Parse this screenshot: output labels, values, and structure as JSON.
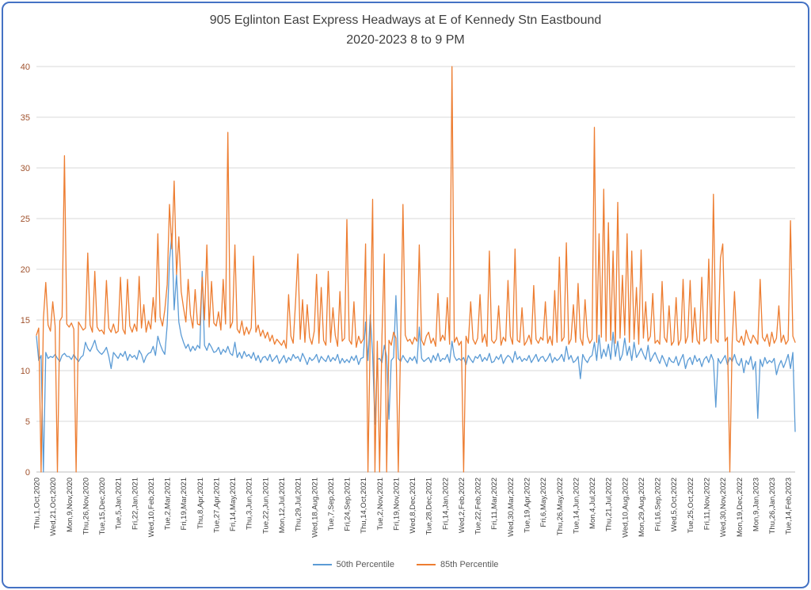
{
  "title": {
    "line1": "905 Eglinton East Express Headways at E of Kennedy Stn Eastbound",
    "line2": "2020-2023 8 to 9 PM"
  },
  "colors": {
    "series_50th": "#5B9BD5",
    "series_85th": "#ED7D31",
    "gridline": "#D9D9D9",
    "axis_line": "#BFBFBF",
    "y_tick_label": "#A0522D",
    "x_tick_label": "#404040",
    "title_text": "#3F3F3F",
    "legend_text": "#595959",
    "frame_border": "#4472C4"
  },
  "chart_data": {
    "type": "line",
    "title": "905 Eglinton East Express Headways at E of Kennedy Stn Eastbound",
    "subtitle": "2020-2023 8 to 9 PM",
    "xlabel": "",
    "ylabel": "",
    "ylim": [
      0,
      40
    ],
    "y_ticks": [
      0,
      5,
      10,
      15,
      20,
      25,
      30,
      35,
      40
    ],
    "grid": true,
    "legend_position": "bottom",
    "points_per_tick": 7,
    "x_tick_labels": [
      "Thu,1,Oct,2020",
      "Wed,21,Oct,2020",
      "Mon,9,Nov,2020",
      "Thu,26,Nov,2020",
      "Tue,15,Dec,2020",
      "Tue,5,Jan,2021",
      "Fri,22,Jan,2021",
      "Wed,10,Feb,2021",
      "Tue,2,Mar,2021",
      "Fri,19,Mar,2021",
      "Thu,8,Apr,2021",
      "Tue,27,Apr,2021",
      "Fri,14,May,2021",
      "Thu,3,Jun,2021",
      "Tue,22,Jun,2021",
      "Mon,12,Jul,2021",
      "Thu,29,Jul,2021",
      "Wed,18,Aug,2021",
      "Tue,7,Sep,2021",
      "Fri,24,Sep,2021",
      "Thu,14,Oct,2021",
      "Tue,2,Nov,2021",
      "Fri,19,Nov,2021",
      "Wed,8,Dec,2021",
      "Tue,28,Dec,2021",
      "Fri,14,Jan,2022",
      "Wed,2,Feb,2022",
      "Tue,22,Feb,2022",
      "Fri,11,Mar,2022",
      "Wed,30,Mar,2022",
      "Tue,19,Apr,2022",
      "Fri,6,May,2022",
      "Thu,26,May,2022",
      "Tue,14,Jun,2022",
      "Mon,4,Jul,2022",
      "Thu,21,Jul,2022",
      "Wed,10,Aug,2022",
      "Mon,29,Aug,2022",
      "Fri,16,Sep,2022",
      "Wed,5,Oct,2022",
      "Tue,25,Oct,2022",
      "Fri,11,Nov,2022",
      "Wed,30,Nov,2022",
      "Mon,19,Dec,2022",
      "Mon,9,Jan,2023",
      "Thu,26,Jan,2023",
      "Tue,14,Feb,2023"
    ],
    "series": [
      {
        "name": "50th Percentile",
        "color": "#5B9BD5",
        "values": [
          13.4,
          11.0,
          11.5,
          0,
          11.8,
          11.2,
          11.4,
          11.3,
          11.6,
          11.2,
          10.9,
          11.5,
          11.7,
          11.4,
          11.4,
          11.1,
          11.6,
          11.2,
          10.9,
          11.3,
          11.5,
          12.8,
          12.2,
          11.9,
          12.4,
          13.0,
          12.1,
          11.8,
          11.6,
          11.9,
          12.3,
          11.4,
          10.2,
          11.8,
          11.5,
          11.2,
          11.7,
          11.4,
          11.9,
          11.0,
          11.6,
          11.3,
          11.5,
          11.1,
          12.0,
          11.6,
          10.8,
          11.4,
          11.7,
          11.8,
          12.4,
          11.5,
          13.4,
          12.6,
          12.0,
          11.6,
          14.5,
          20.8,
          23.5,
          16.0,
          19.5,
          14.8,
          13.5,
          12.8,
          12.2,
          12.6,
          11.9,
          12.4,
          12.0,
          12.5,
          12.2,
          19.8,
          12.5,
          12.0,
          12.7,
          12.3,
          11.8,
          11.9,
          12.3,
          11.6,
          12.1,
          11.8,
          12.4,
          11.7,
          11.5,
          12.8,
          11.3,
          11.8,
          11.2,
          11.9,
          11.4,
          11.6,
          11.2,
          11.8,
          11.0,
          11.5,
          10.8,
          11.3,
          11.4,
          11.0,
          11.6,
          10.9,
          11.2,
          11.5,
          10.7,
          11.1,
          11.5,
          10.8,
          11.3,
          11.0,
          11.6,
          11.2,
          11.4,
          10.9,
          11.7,
          11.2,
          10.6,
          11.3,
          11.0,
          11.2,
          11.6,
          10.8,
          11.4,
          11.1,
          10.9,
          11.5,
          10.9,
          11.3,
          11.0,
          11.6,
          10.7,
          11.2,
          10.8,
          11.1,
          10.8,
          11.4,
          11.0,
          11.5,
          10.6,
          11.2,
          11.3,
          14.8,
          11.0,
          15.5,
          11.6,
          4.7,
          11.1,
          11.2,
          10.8,
          12.5,
          11.4,
          5.2,
          11.0,
          11.3,
          17.4,
          11.2,
          10.9,
          11.5,
          11.1,
          10.8,
          11.3,
          11.0,
          11.4,
          10.7,
          14.3,
          11.2,
          10.9,
          11.1,
          11.3,
          10.8,
          11.5,
          11.0,
          11.7,
          10.9,
          11.2,
          11.1,
          11.6,
          10.8,
          12.9,
          11.4,
          11.0,
          11.2,
          11.0,
          11.3,
          10.6,
          11.5,
          11.1,
          10.8,
          11.4,
          11.2,
          11.6,
          10.9,
          11.3,
          11.0,
          11.7,
          10.8,
          10.9,
          11.4,
          11.1,
          11.6,
          10.7,
          11.2,
          11.5,
          11.3,
          10.8,
          11.9,
          11.1,
          11.4,
          10.9,
          11.2,
          11.0,
          11.5,
          10.8,
          11.2,
          11.6,
          10.9,
          11.3,
          11.4,
          10.9,
          11.2,
          11.7,
          10.8,
          11.3,
          11.0,
          11.2,
          11.6,
          10.9,
          12.4,
          11.1,
          11.5,
          10.8,
          11.0,
          11.4,
          9.2,
          11.6,
          11.1,
          10.8,
          11.3,
          11.5,
          12.8,
          11.0,
          13.5,
          11.2,
          12.1,
          11.4,
          12.6,
          11.1,
          13.8,
          11.4,
          12.9,
          11.0,
          11.6,
          13.2,
          11.5,
          12.4,
          11.0,
          12.8,
          11.3,
          11.7,
          12.2,
          11.6,
          11.1,
          12.5,
          10.9,
          11.4,
          11.8,
          11.2,
          10.7,
          11.5,
          11.0,
          10.4,
          11.3,
          10.9,
          10.8,
          11.4,
          10.5,
          11.1,
          11.6,
          10.2,
          11.0,
          11.3,
          10.6,
          11.5,
          10.9,
          11.2,
          10.4,
          11.1,
          11.4,
          10.8,
          11.6,
          11.0,
          6.4,
          11.2,
          10.7,
          11.1,
          11.5,
          10.6,
          11.3,
          10.9,
          11.6,
          10.8,
          10.5,
          11.2,
          9.8,
          11.0,
          10.6,
          11.4,
          10.1,
          10.9,
          5.3,
          11.1,
          10.4,
          11.3,
          10.7,
          11.0,
          10.8,
          11.2,
          9.6,
          10.5,
          11.0,
          10.3,
          10.9,
          11.6,
          10.2,
          11.8,
          4.0
        ]
      },
      {
        "name": "85th Percentile",
        "color": "#ED7D31",
        "values": [
          13.5,
          14.2,
          0,
          15.1,
          18.7,
          14.5,
          13.9,
          16.8,
          14.4,
          0,
          14.9,
          15.3,
          31.2,
          14.6,
          14.3,
          14.7,
          14.1,
          0,
          14.8,
          14.4,
          14.0,
          14.2,
          21.6,
          14.5,
          13.8,
          19.8,
          14.3,
          13.9,
          14.0,
          13.6,
          18.9,
          14.2,
          13.8,
          14.6,
          13.7,
          13.9,
          19.2,
          14.1,
          13.6,
          19.0,
          14.4,
          13.8,
          14.6,
          13.9,
          19.3,
          14.2,
          16.5,
          13.8,
          14.9,
          14.1,
          17.2,
          14.8,
          23.5,
          15.3,
          14.4,
          16.0,
          18.5,
          26.4,
          22.0,
          28.7,
          19.5,
          23.2,
          17.8,
          16.2,
          14.8,
          19.0,
          15.5,
          14.2,
          18.0,
          14.6,
          14.5,
          19.2,
          15.0,
          22.4,
          14.3,
          18.8,
          14.7,
          14.4,
          15.8,
          14.0,
          19.0,
          14.6,
          33.5,
          14.2,
          14.8,
          22.4,
          14.1,
          13.7,
          14.9,
          13.5,
          14.3,
          13.6,
          14.2,
          21.3,
          13.8,
          14.5,
          13.4,
          14.0,
          13.2,
          13.8,
          12.9,
          13.5,
          12.6,
          13.1,
          12.8,
          12.5,
          13.0,
          12.2,
          17.5,
          13.4,
          12.7,
          16.8,
          21.5,
          13.1,
          17.0,
          12.8,
          16.5,
          13.3,
          12.6,
          13.9,
          19.5,
          12.7,
          18.2,
          13.0,
          12.5,
          19.8,
          12.8,
          16.2,
          13.5,
          12.4,
          17.8,
          12.9,
          13.2,
          24.9,
          13.0,
          12.6,
          16.8,
          12.3,
          13.4,
          12.7,
          13.1,
          22.5,
          0,
          13.6,
          26.9,
          0,
          12.9,
          0,
          13.4,
          21.5,
          0,
          13.0,
          12.5,
          13.8,
          13.2,
          0,
          12.8,
          26.4,
          13.5,
          12.9,
          13.1,
          12.6,
          13.3,
          12.9,
          22.4,
          13.0,
          12.5,
          13.4,
          13.8,
          12.7,
          13.2,
          12.4,
          17.6,
          12.9,
          13.5,
          13.0,
          17.2,
          12.6,
          40,
          12.8,
          13.3,
          12.5,
          12.9,
          0,
          13.4,
          12.7,
          16.8,
          13.1,
          12.6,
          13.2,
          17.5,
          12.8,
          13.6,
          12.4,
          21.8,
          13.0,
          12.7,
          13.1,
          16.4,
          12.5,
          13.3,
          12.9,
          18.9,
          13.4,
          12.6,
          22.0,
          13.0,
          12.8,
          16.2,
          12.5,
          12.9,
          13.5,
          12.6,
          18.4,
          13.1,
          12.7,
          13.3,
          13.0,
          16.8,
          12.7,
          13.4,
          12.5,
          17.9,
          12.8,
          21.2,
          12.9,
          13.3,
          22.6,
          12.6,
          13.1,
          16.5,
          12.8,
          18.6,
          13.2,
          12.5,
          17.0,
          13.4,
          12.7,
          13.1,
          34.0,
          12.8,
          23.5,
          13.3,
          27.9,
          12.9,
          24.6,
          13.0,
          21.8,
          12.7,
          26.6,
          13.2,
          19.4,
          13.5,
          23.5,
          12.8,
          21.8,
          13.1,
          18.2,
          12.6,
          21.9,
          13.2,
          16.8,
          12.9,
          13.4,
          17.6,
          12.7,
          13.0,
          12.6,
          18.8,
          13.3,
          12.8,
          16.4,
          12.5,
          12.9,
          17.2,
          12.5,
          13.1,
          19.0,
          12.7,
          13.4,
          18.9,
          12.8,
          16.2,
          13.0,
          12.6,
          19.2,
          12.9,
          13.2,
          21.0,
          12.7,
          27.4,
          13.1,
          12.8,
          21.1,
          22.5,
          12.9,
          13.3,
          0,
          12.6,
          17.8,
          13.0,
          12.8,
          13.4,
          12.5,
          14.0,
          13.2,
          12.7,
          13.5,
          13.1,
          12.6,
          19.0,
          13.3,
          12.9,
          13.6,
          12.4,
          13.8,
          12.7,
          13.2,
          16.4,
          12.8,
          13.5,
          12.6,
          13.0,
          24.8,
          13.4,
          12.8
        ]
      }
    ]
  }
}
